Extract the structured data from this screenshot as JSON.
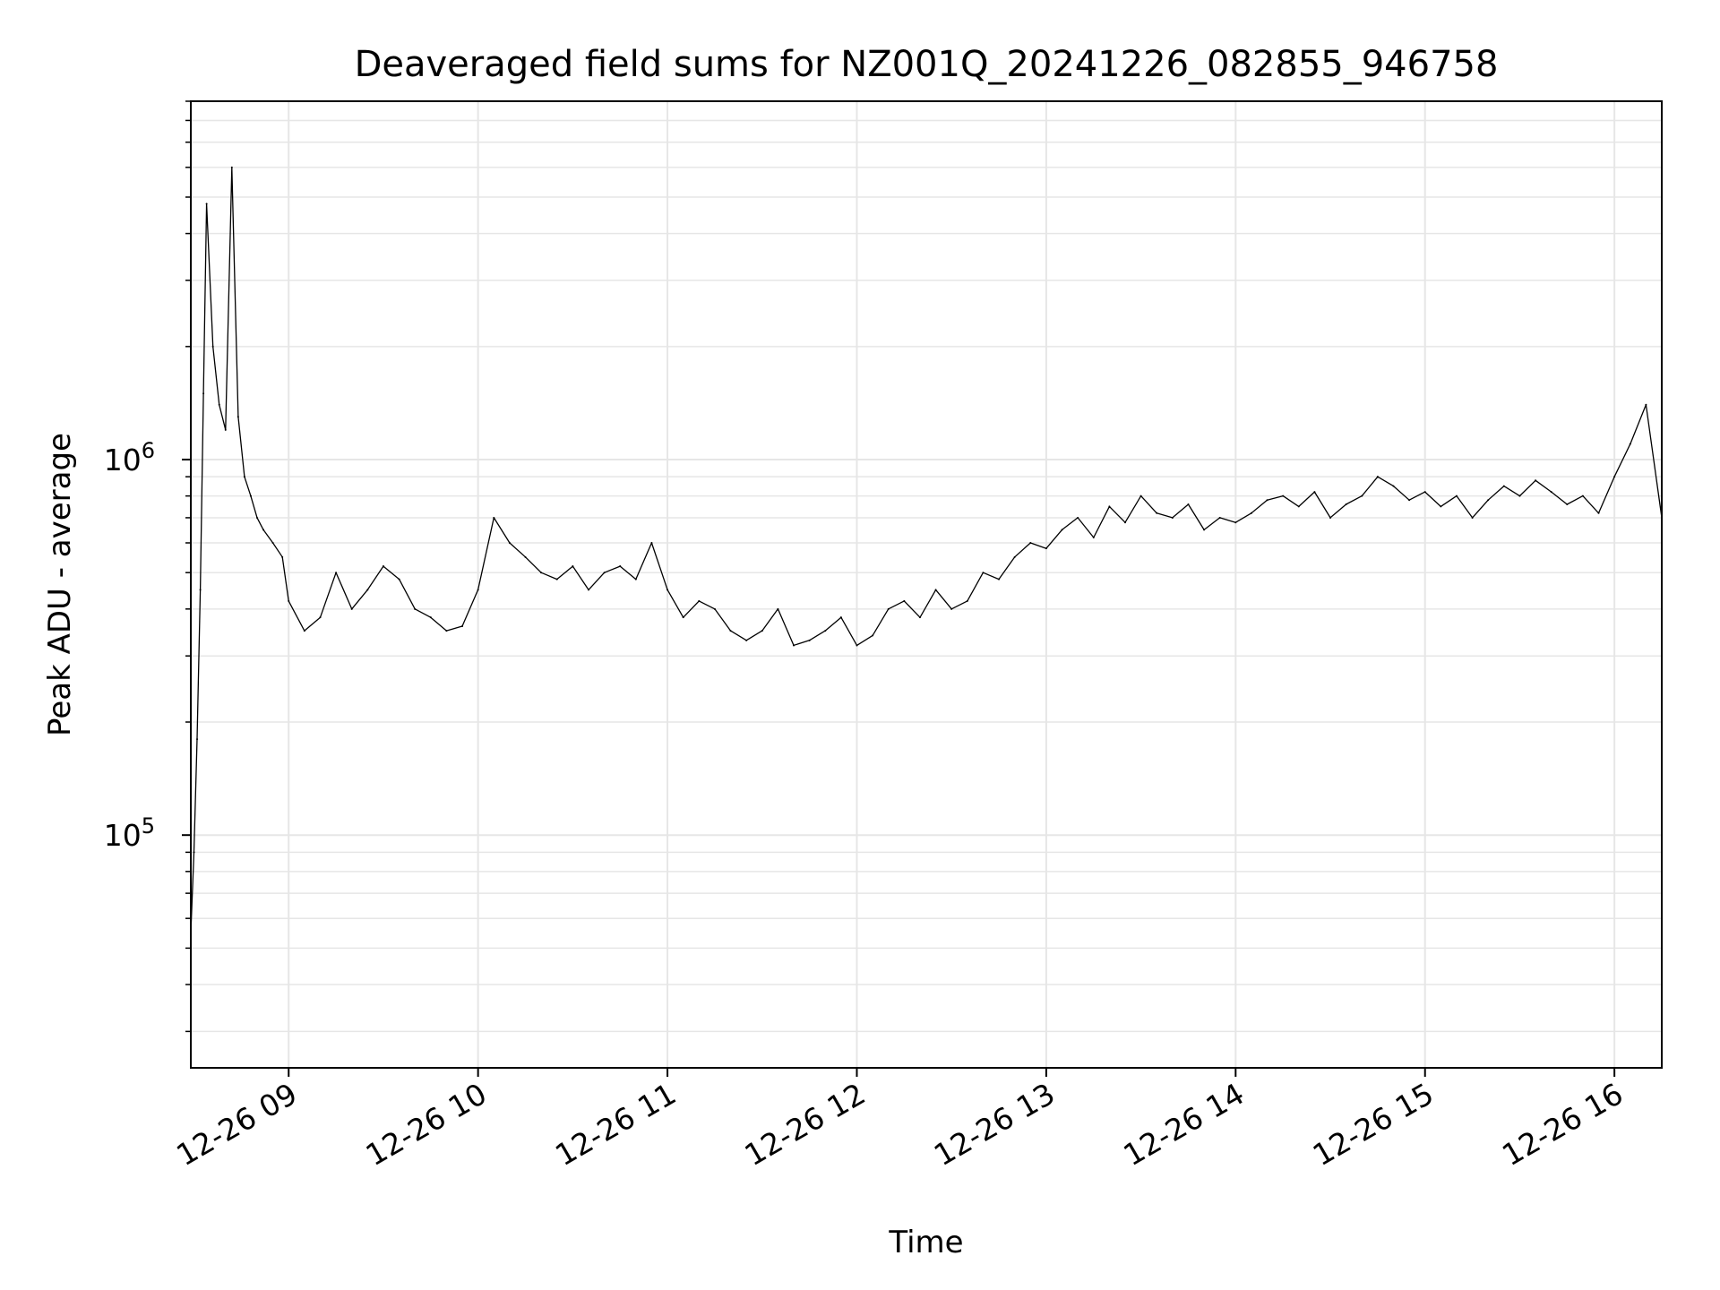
{
  "chart_data": {
    "type": "line",
    "title": "Deaveraged field sums for NZ001Q_20241226_082855_946758",
    "xlabel": "Time",
    "ylabel": "Peak ADU - average",
    "yscale": "log",
    "grid": true,
    "line_color": "#000000",
    "grid_color": "#e6e6e6",
    "xlim": [
      "12-26 08:29",
      "12-26 16:15"
    ],
    "ylim": [
      24000,
      9000000
    ],
    "x_ticks": [
      {
        "time": "12-26 09:00",
        "label": "12-26 09"
      },
      {
        "time": "12-26 10:00",
        "label": "12-26 10"
      },
      {
        "time": "12-26 11:00",
        "label": "12-26 11"
      },
      {
        "time": "12-26 12:00",
        "label": "12-26 12"
      },
      {
        "time": "12-26 13:00",
        "label": "12-26 13"
      },
      {
        "time": "12-26 14:00",
        "label": "12-26 14"
      },
      {
        "time": "12-26 15:00",
        "label": "12-26 15"
      },
      {
        "time": "12-26 16:00",
        "label": "12-26 16"
      }
    ],
    "y_ticks": [
      {
        "value": 100000,
        "base": "10",
        "exp": "5"
      },
      {
        "value": 1000000,
        "base": "10",
        "exp": "6"
      }
    ],
    "series": [
      {
        "x": [
          "12-26 08:29",
          "12-26 08:30",
          "12-26 08:31",
          "12-26 08:32",
          "12-26 08:33",
          "12-26 08:34",
          "12-26 08:36",
          "12-26 08:38",
          "12-26 08:40",
          "12-26 08:42",
          "12-26 08:44",
          "12-26 08:46",
          "12-26 08:48",
          "12-26 08:50",
          "12-26 08:52",
          "12-26 08:55",
          "12-26 08:58",
          "12-26 09:00",
          "12-26 09:05",
          "12-26 09:10",
          "12-26 09:15",
          "12-26 09:20",
          "12-26 09:25",
          "12-26 09:30",
          "12-26 09:35",
          "12-26 09:40",
          "12-26 09:45",
          "12-26 09:50",
          "12-26 09:55",
          "12-26 10:00",
          "12-26 10:05",
          "12-26 10:10",
          "12-26 10:15",
          "12-26 10:20",
          "12-26 10:25",
          "12-26 10:30",
          "12-26 10:35",
          "12-26 10:40",
          "12-26 10:45",
          "12-26 10:50",
          "12-26 10:55",
          "12-26 11:00",
          "12-26 11:05",
          "12-26 11:10",
          "12-26 11:15",
          "12-26 11:20",
          "12-26 11:25",
          "12-26 11:30",
          "12-26 11:35",
          "12-26 11:40",
          "12-26 11:45",
          "12-26 11:50",
          "12-26 11:55",
          "12-26 12:00",
          "12-26 12:05",
          "12-26 12:10",
          "12-26 12:15",
          "12-26 12:20",
          "12-26 12:25",
          "12-26 12:30",
          "12-26 12:35",
          "12-26 12:40",
          "12-26 12:45",
          "12-26 12:50",
          "12-26 12:55",
          "12-26 13:00",
          "12-26 13:05",
          "12-26 13:10",
          "12-26 13:15",
          "12-26 13:20",
          "12-26 13:25",
          "12-26 13:30",
          "12-26 13:35",
          "12-26 13:40",
          "12-26 13:45",
          "12-26 13:50",
          "12-26 13:55",
          "12-26 14:00",
          "12-26 14:05",
          "12-26 14:10",
          "12-26 14:15",
          "12-26 14:20",
          "12-26 14:25",
          "12-26 14:30",
          "12-26 14:35",
          "12-26 14:40",
          "12-26 14:45",
          "12-26 14:50",
          "12-26 14:55",
          "12-26 15:00",
          "12-26 15:05",
          "12-26 15:10",
          "12-26 15:15",
          "12-26 15:20",
          "12-26 15:25",
          "12-26 15:30",
          "12-26 15:35",
          "12-26 15:40",
          "12-26 15:45",
          "12-26 15:50",
          "12-26 15:55",
          "12-26 16:00",
          "12-26 16:05",
          "12-26 16:10",
          "12-26 16:15"
        ],
        "y": [
          55000,
          90000,
          180000,
          450000,
          1500000,
          4800000,
          2000000,
          1400000,
          1200000,
          6000000,
          1300000,
          900000,
          800000,
          700000,
          650000,
          600000,
          550000,
          420000,
          350000,
          380000,
          500000,
          400000,
          450000,
          520000,
          480000,
          400000,
          380000,
          350000,
          360000,
          450000,
          700000,
          600000,
          550000,
          500000,
          480000,
          520000,
          450000,
          500000,
          520000,
          480000,
          600000,
          450000,
          380000,
          420000,
          400000,
          350000,
          330000,
          350000,
          400000,
          320000,
          330000,
          350000,
          380000,
          320000,
          340000,
          400000,
          420000,
          380000,
          450000,
          400000,
          420000,
          500000,
          480000,
          550000,
          600000,
          580000,
          650000,
          700000,
          620000,
          750000,
          680000,
          800000,
          720000,
          700000,
          760000,
          650000,
          700000,
          680000,
          720000,
          780000,
          800000,
          750000,
          820000,
          700000,
          760000,
          800000,
          900000,
          850000,
          780000,
          820000,
          750000,
          800000,
          700000,
          780000,
          850000,
          800000,
          880000,
          820000,
          760000,
          800000,
          720000,
          900000,
          1100000,
          1400000,
          700000
        ]
      }
    ]
  }
}
